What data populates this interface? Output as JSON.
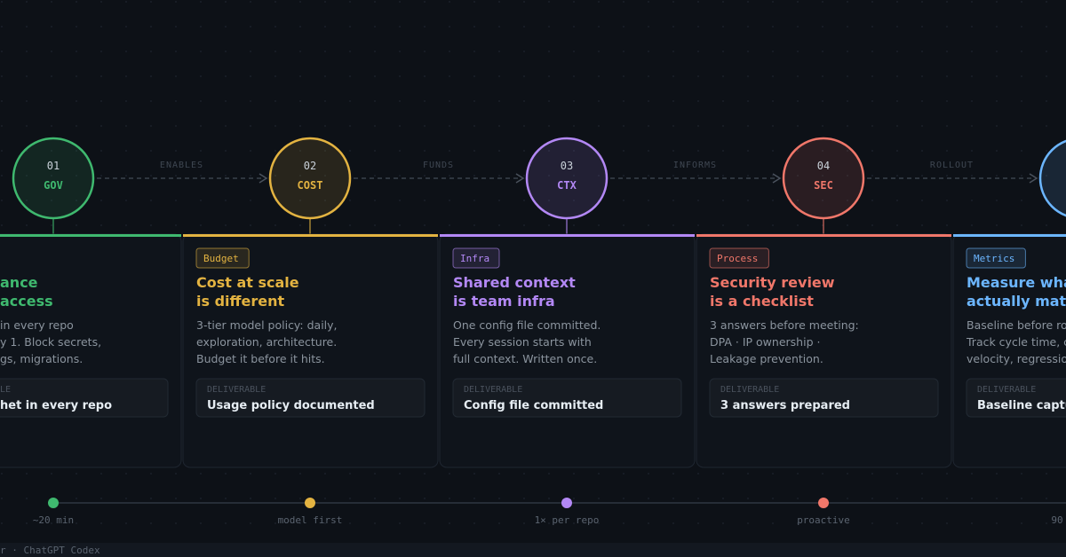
{
  "steps": [
    {
      "number": "01",
      "code": "GOV",
      "color": "#3fb96f",
      "title": [
        "ance",
        "access"
      ],
      "body": [
        "in every repo",
        "y 1. Block secrets,",
        "gs, migrations."
      ],
      "deliverable_label": "LE",
      "deliverable": "het in every repo",
      "timeline_label": "~20 min"
    },
    {
      "number": "02",
      "code": "COST",
      "color": "#e3b341",
      "badge": "Budget",
      "title": [
        "Cost at scale",
        "is different"
      ],
      "body": [
        "3-tier model policy: daily,",
        "exploration, architecture.",
        "Budget it before it hits."
      ],
      "deliverable_label": "DELIVERABLE",
      "deliverable": "Usage policy documented",
      "timeline_label": "model first"
    },
    {
      "number": "03",
      "code": "CTX",
      "color": "#b388f5",
      "badge": "Infra",
      "title": [
        "Shared context",
        "is team infra"
      ],
      "body": [
        "One config file committed.",
        "Every session starts with",
        "full context. Written once."
      ],
      "deliverable_label": "DELIVERABLE",
      "deliverable": "Config file committed",
      "timeline_label": "1× per repo"
    },
    {
      "number": "04",
      "code": "SEC",
      "color": "#f0776a",
      "badge": "Process",
      "title": [
        "Security review",
        "is a checklist"
      ],
      "body": [
        "3 answers before meeting:",
        "DPA · IP ownership ·",
        "Leakage prevention."
      ],
      "deliverable_label": "DELIVERABLE",
      "deliverable": "3 answers prepared",
      "timeline_label": "proactive"
    },
    {
      "color": "#6cb6ff",
      "badge": "Metrics",
      "title": [
        "Measure wha",
        "actually mat"
      ],
      "body": [
        "Baseline before ro",
        "Track cycle time, c",
        "velocity, regressio"
      ],
      "deliverable_label": "DELIVERABLE",
      "deliverable": "Baseline captu",
      "timeline_label": "90"
    }
  ],
  "connectors": [
    "ENABLES",
    "FUNDS",
    "INFORMS",
    "ROLLOUT"
  ],
  "footer": "r · ChatGPT Codex"
}
